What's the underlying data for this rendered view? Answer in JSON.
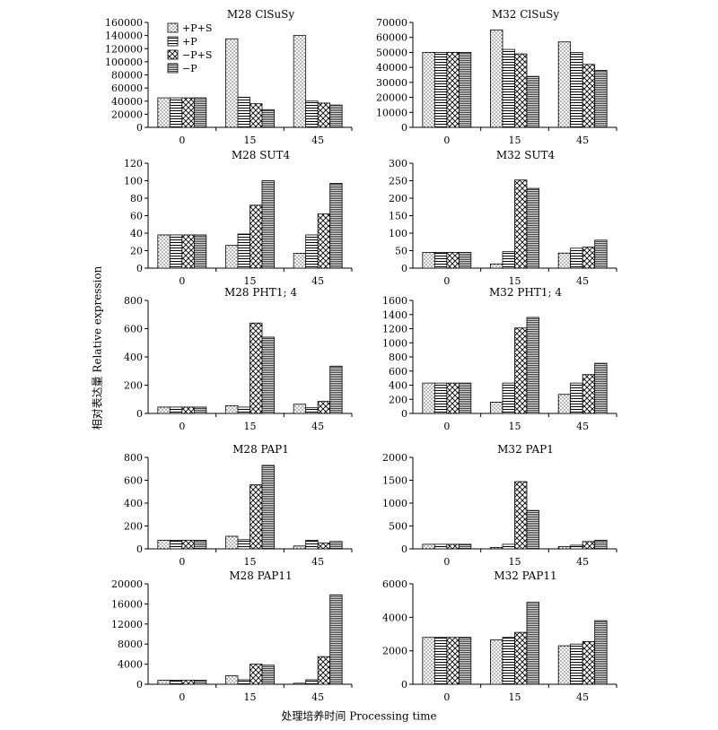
{
  "figure": {
    "ylabel": "相对表达量 Relative expression",
    "xlabel": "处理培养时间 Processing time"
  },
  "legend": [
    {
      "label": "+P+S",
      "pattern": "dots"
    },
    {
      "label": "+P",
      "pattern": "hstripes"
    },
    {
      "label": "−P+S",
      "pattern": "cross"
    },
    {
      "label": "−P",
      "pattern": "dark"
    }
  ],
  "chart_data": [
    {
      "type": "bar",
      "title": "M28 ClSuSy",
      "categories": [
        "0",
        "15",
        "45"
      ],
      "ylim": [
        0,
        160000
      ],
      "yticks": [
        "0",
        "20000",
        "40000",
        "60000",
        "80000",
        "100000",
        "120000",
        "140000",
        "160000"
      ],
      "series": [
        {
          "name": "+P+S",
          "values": [
            45000,
            135000,
            140000
          ]
        },
        {
          "name": "+P",
          "values": [
            45000,
            46000,
            40000
          ]
        },
        {
          "name": "−P+S",
          "values": [
            45000,
            36000,
            37000
          ]
        },
        {
          "name": "−P",
          "values": [
            45000,
            27000,
            34000
          ]
        }
      ]
    },
    {
      "type": "bar",
      "title": "M32 ClSuSy",
      "categories": [
        "0",
        "15",
        "45"
      ],
      "ylim": [
        0,
        70000
      ],
      "yticks": [
        "0",
        "10000",
        "20000",
        "30000",
        "40000",
        "50000",
        "60000",
        "70000"
      ],
      "series": [
        {
          "name": "+P+S",
          "values": [
            50000,
            65000,
            57000
          ]
        },
        {
          "name": "+P",
          "values": [
            50000,
            52000,
            50000
          ]
        },
        {
          "name": "−P+S",
          "values": [
            50000,
            49000,
            42000
          ]
        },
        {
          "name": "−P",
          "values": [
            50000,
            34000,
            38000
          ]
        }
      ]
    },
    {
      "type": "bar",
      "title": "M28 SUT4",
      "categories": [
        "0",
        "15",
        "45"
      ],
      "ylim": [
        0,
        120
      ],
      "yticks": [
        "0",
        "20",
        "40",
        "60",
        "80",
        "100",
        "120"
      ],
      "series": [
        {
          "name": "+P+S",
          "values": [
            38,
            26,
            17
          ]
        },
        {
          "name": "+P",
          "values": [
            38,
            39,
            38
          ]
        },
        {
          "name": "−P+S",
          "values": [
            38,
            72,
            62
          ]
        },
        {
          "name": "−P",
          "values": [
            38,
            100,
            97
          ]
        }
      ]
    },
    {
      "type": "bar",
      "title": "M32 SUT4",
      "categories": [
        "0",
        "15",
        "45"
      ],
      "ylim": [
        0,
        300
      ],
      "yticks": [
        "0",
        "50",
        "100",
        "150",
        "200",
        "250",
        "300"
      ],
      "series": [
        {
          "name": "+P+S",
          "values": [
            45,
            12,
            43
          ]
        },
        {
          "name": "+P",
          "values": [
            45,
            47,
            57
          ]
        },
        {
          "name": "−P+S",
          "values": [
            45,
            252,
            60
          ]
        },
        {
          "name": "−P",
          "values": [
            45,
            228,
            80
          ]
        }
      ]
    },
    {
      "type": "bar",
      "title": "M28 PHT1; 4",
      "categories": [
        "0",
        "15",
        "45"
      ],
      "ylim": [
        0,
        800
      ],
      "yticks": [
        "0",
        "200",
        "400",
        "600",
        "800"
      ],
      "series": [
        {
          "name": "+P+S",
          "values": [
            45,
            55,
            65
          ]
        },
        {
          "name": "+P",
          "values": [
            45,
            45,
            40
          ]
        },
        {
          "name": "−P+S",
          "values": [
            45,
            640,
            85
          ]
        },
        {
          "name": "−P",
          "values": [
            45,
            540,
            335
          ]
        }
      ]
    },
    {
      "type": "bar",
      "title": "M32 PHT1; 4",
      "categories": [
        "0",
        "15",
        "45"
      ],
      "ylim": [
        0,
        1600
      ],
      "yticks": [
        "0",
        "200",
        "400",
        "600",
        "800",
        "1000",
        "1200",
        "1400",
        "1600"
      ],
      "series": [
        {
          "name": "+P+S",
          "values": [
            430,
            160,
            270
          ]
        },
        {
          "name": "+P",
          "values": [
            430,
            430,
            430
          ]
        },
        {
          "name": "−P+S",
          "values": [
            430,
            1210,
            550
          ]
        },
        {
          "name": "−P",
          "values": [
            430,
            1360,
            710
          ]
        }
      ]
    },
    {
      "type": "bar",
      "title": "M28 PAP1",
      "categories": [
        "0",
        "15",
        "45"
      ],
      "ylim": [
        0,
        800
      ],
      "yticks": [
        "0",
        "200",
        "400",
        "600",
        "800"
      ],
      "series": [
        {
          "name": "+P+S",
          "values": [
            75,
            110,
            25
          ]
        },
        {
          "name": "+P",
          "values": [
            75,
            80,
            75
          ]
        },
        {
          "name": "−P+S",
          "values": [
            75,
            560,
            50
          ]
        },
        {
          "name": "−P",
          "values": [
            75,
            730,
            65
          ]
        }
      ]
    },
    {
      "type": "bar",
      "title": "M32 PAP1",
      "categories": [
        "0",
        "15",
        "45"
      ],
      "ylim": [
        0,
        2000
      ],
      "yticks": [
        "0",
        "500",
        "1000",
        "1500",
        "2000"
      ],
      "series": [
        {
          "name": "+P+S",
          "values": [
            100,
            30,
            50
          ]
        },
        {
          "name": "+P",
          "values": [
            100,
            100,
            80
          ]
        },
        {
          "name": "−P+S",
          "values": [
            100,
            1470,
            160
          ]
        },
        {
          "name": "−P",
          "values": [
            100,
            840,
            190
          ]
        }
      ]
    },
    {
      "type": "bar",
      "title": "M28 PAP11",
      "categories": [
        "0",
        "15",
        "45"
      ],
      "ylim": [
        0,
        20000
      ],
      "yticks": [
        "0",
        "4000",
        "8000",
        "12000",
        "16000",
        "20000"
      ],
      "series": [
        {
          "name": "+P+S",
          "values": [
            800,
            1700,
            200
          ]
        },
        {
          "name": "+P",
          "values": [
            800,
            900,
            900
          ]
        },
        {
          "name": "−P+S",
          "values": [
            800,
            4000,
            5500
          ]
        },
        {
          "name": "−P",
          "values": [
            800,
            3800,
            17800
          ]
        }
      ]
    },
    {
      "type": "bar",
      "title": "M32 PAP11",
      "categories": [
        "0",
        "15",
        "45"
      ],
      "ylim": [
        0,
        6000
      ],
      "yticks": [
        "0",
        "2000",
        "4000",
        "6000"
      ],
      "series": [
        {
          "name": "+P+S",
          "values": [
            2800,
            2650,
            2300
          ]
        },
        {
          "name": "+P",
          "values": [
            2800,
            2800,
            2400
          ]
        },
        {
          "name": "−P+S",
          "values": [
            2800,
            3100,
            2550
          ]
        },
        {
          "name": "−P",
          "values": [
            2800,
            4900,
            3800
          ]
        }
      ]
    }
  ]
}
